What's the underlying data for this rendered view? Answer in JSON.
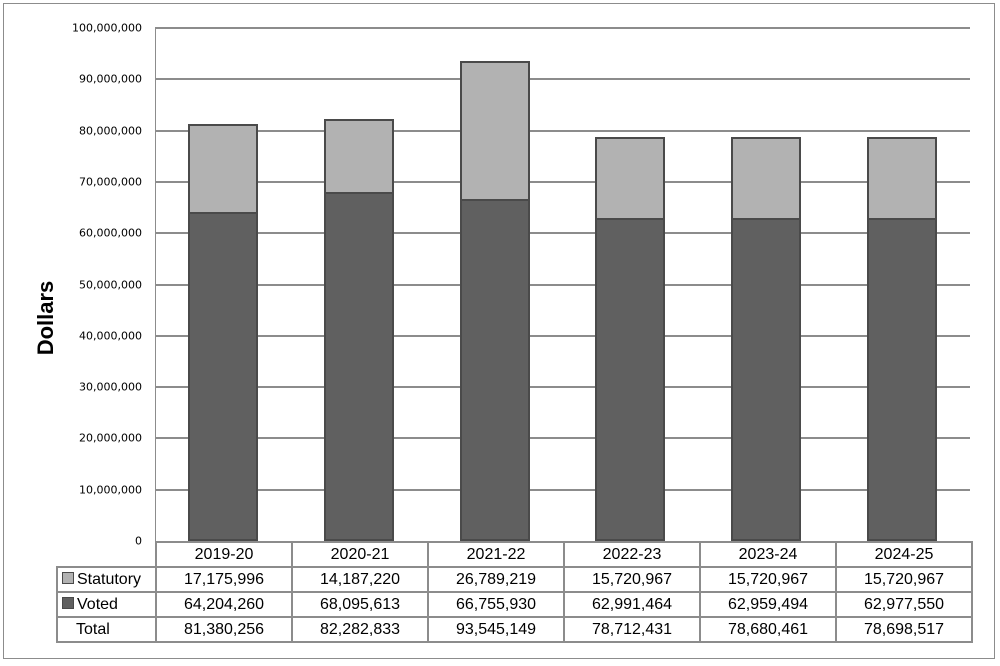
{
  "chart_data": {
    "type": "bar",
    "stacked": true,
    "title": "",
    "xlabel": "",
    "ylabel": "Dollars",
    "ylim": [
      0,
      100000000
    ],
    "yticks": [
      "0",
      "10,000,000",
      "20,000,000",
      "30,000,000",
      "40,000,000",
      "50,000,000",
      "60,000,000",
      "70,000,000",
      "80,000,000",
      "90,000,000",
      "100,000,000"
    ],
    "grid": true,
    "legend_position": "data-table",
    "categories": [
      "2019-20",
      "2020-21",
      "2021-22",
      "2022-23",
      "2023-24",
      "2024-25"
    ],
    "series": [
      {
        "name": "Statutory",
        "color": "#b2b2b2",
        "values": [
          17175996,
          14187220,
          26789219,
          15720967,
          15720967,
          15720967
        ],
        "labels": [
          "17,175,996",
          "14,187,220",
          "26,789,219",
          "15,720,967",
          "15,720,967",
          "15,720,967"
        ]
      },
      {
        "name": "Voted",
        "color": "#606060",
        "values": [
          64204260,
          68095613,
          66755930,
          62991464,
          62959494,
          62977550
        ],
        "labels": [
          "64,204,260",
          "68,095,613",
          "66,755,930",
          "62,991,464",
          "62,959,494",
          "62,977,550"
        ]
      }
    ],
    "totals": {
      "name": "Total",
      "values": [
        81380256,
        82282833,
        93545149,
        78712431,
        78680461,
        78698517
      ],
      "labels": [
        "81,380,256",
        "82,282,833",
        "93,545,149",
        "78,712,431",
        "78,680,461",
        "78,698,517"
      ]
    }
  }
}
